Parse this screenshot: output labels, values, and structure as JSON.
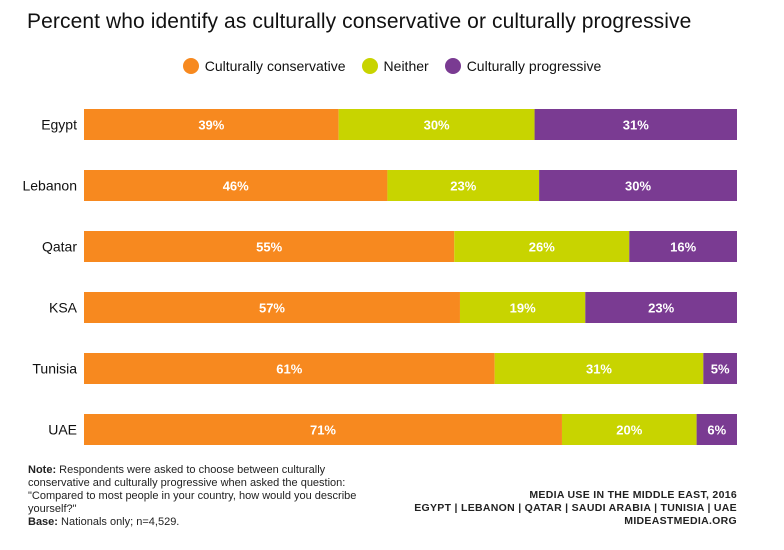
{
  "title": "Percent who identify as culturally conservative or culturally progressive",
  "legend": [
    {
      "label": "Culturally conservative",
      "color": "#f7891f"
    },
    {
      "label": "Neither",
      "color": "#c8d400"
    },
    {
      "label": "Culturally progressive",
      "color": "#7a3b92"
    }
  ],
  "chart_data": {
    "type": "bar",
    "orientation": "horizontal",
    "stacked": true,
    "categories": [
      "Egypt",
      "Lebanon",
      "Qatar",
      "KSA",
      "Tunisia",
      "UAE"
    ],
    "series": [
      {
        "name": "Culturally conservative",
        "color": "#f7891f",
        "values": [
          39,
          46,
          55,
          57,
          61,
          71
        ]
      },
      {
        "name": "Neither",
        "color": "#c8d400",
        "values": [
          30,
          23,
          26,
          19,
          31,
          20
        ]
      },
      {
        "name": "Culturally progressive",
        "color": "#7a3b92",
        "values": [
          31,
          30,
          16,
          23,
          5,
          6
        ]
      }
    ],
    "value_suffix": "%",
    "legend_position": "top",
    "grid": false
  },
  "note": {
    "label": "Note:",
    "text": "Respondents were asked to choose between culturally conservative and culturally progressive when asked the question: \"Compared to most people in your country, how would you describe yourself?\"",
    "base_label": "Base:",
    "base_text": "Nationals only; n=4,529."
  },
  "source": {
    "line1": "MEDIA USE IN THE MIDDLE EAST, 2016",
    "line2": "EGYPT | LEBANON | QATAR | SAUDI ARABIA | TUNISIA | UAE",
    "line3": "MIDEASTMEDIA.ORG"
  }
}
